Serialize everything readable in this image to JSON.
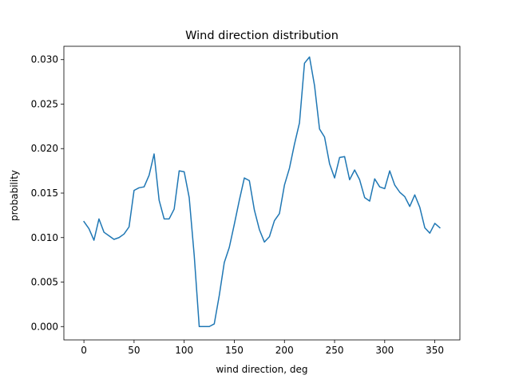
{
  "chart_data": {
    "type": "line",
    "title": "Wind direction distribution",
    "xlabel": "wind direction, deg",
    "ylabel": "probability",
    "xlim": [
      -20,
      375
    ],
    "ylim": [
      -0.0015,
      0.0315
    ],
    "xticks": [
      0,
      50,
      100,
      150,
      200,
      250,
      300,
      350
    ],
    "xtick_labels": [
      "0",
      "50",
      "100",
      "150",
      "200",
      "250",
      "300",
      "350"
    ],
    "yticks": [
      0.0,
      0.005,
      0.01,
      0.015,
      0.02,
      0.025,
      0.03
    ],
    "ytick_labels": [
      "0.000",
      "0.005",
      "0.010",
      "0.015",
      "0.020",
      "0.025",
      "0.030"
    ],
    "grid": false,
    "series": [
      {
        "color": "#1f77b4",
        "x": [
          0,
          5,
          10,
          15,
          20,
          25,
          30,
          35,
          40,
          45,
          50,
          55,
          60,
          65,
          70,
          75,
          80,
          85,
          90,
          95,
          100,
          105,
          110,
          115,
          120,
          125,
          130,
          135,
          140,
          145,
          150,
          155,
          160,
          165,
          170,
          175,
          180,
          185,
          190,
          195,
          200,
          205,
          210,
          215,
          220,
          225,
          230,
          235,
          240,
          245,
          250,
          255,
          260,
          265,
          270,
          275,
          280,
          285,
          290,
          295,
          300,
          305,
          310,
          315,
          320,
          325,
          330,
          335,
          340,
          345,
          350,
          355
        ],
        "y": [
          0.0118,
          0.011,
          0.0097,
          0.0121,
          0.0106,
          0.0102,
          0.0098,
          0.01,
          0.0104,
          0.0112,
          0.0153,
          0.0156,
          0.0157,
          0.017,
          0.0194,
          0.0142,
          0.0121,
          0.0121,
          0.0132,
          0.0175,
          0.0174,
          0.0145,
          0.008,
          0.0,
          0.0,
          0.0,
          0.0003,
          0.0035,
          0.0072,
          0.0089,
          0.0115,
          0.0142,
          0.0167,
          0.0164,
          0.0131,
          0.0109,
          0.0095,
          0.0101,
          0.0119,
          0.0127,
          0.0159,
          0.0178,
          0.0205,
          0.0229,
          0.0296,
          0.0303,
          0.0271,
          0.0222,
          0.0213,
          0.0183,
          0.0167,
          0.019,
          0.0191,
          0.0165,
          0.0176,
          0.0165,
          0.0145,
          0.0141,
          0.0166,
          0.0157,
          0.0155,
          0.0175,
          0.0159,
          0.0151,
          0.0146,
          0.0135,
          0.0148,
          0.0134,
          0.0111,
          0.0105,
          0.0116,
          0.0111
        ]
      }
    ]
  }
}
